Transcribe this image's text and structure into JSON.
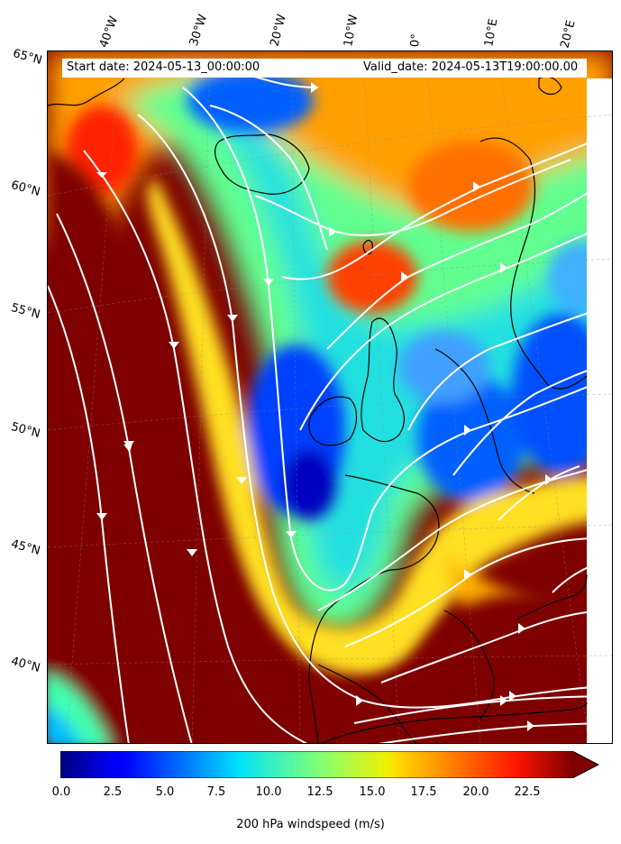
{
  "header": {
    "start_date": "Start date: 2024-05-13_00:00:00",
    "valid_date": "Valid_date: 2024-05-13T19:00:00.00"
  },
  "axes": {
    "longitude_labels": [
      "40°W",
      "30°W",
      "20°W",
      "10°W",
      "0°",
      "10°E",
      "20°E"
    ],
    "latitude_labels": [
      "65°N",
      "60°N",
      "55°N",
      "50°N",
      "45°N",
      "40°N"
    ]
  },
  "colorbar": {
    "label": "200 hPa windspeed (m/s)",
    "min": 0,
    "max": 25,
    "extend": "max",
    "colormap": "jet",
    "ticks": [
      "0.0",
      "2.5",
      "5.0",
      "7.5",
      "10.0",
      "12.5",
      "15.0",
      "17.5",
      "20.0",
      "22.5"
    ]
  },
  "colors": {
    "streamline": "#ffffff",
    "coastline": "#000000",
    "land_mask": "#ffffff"
  }
}
